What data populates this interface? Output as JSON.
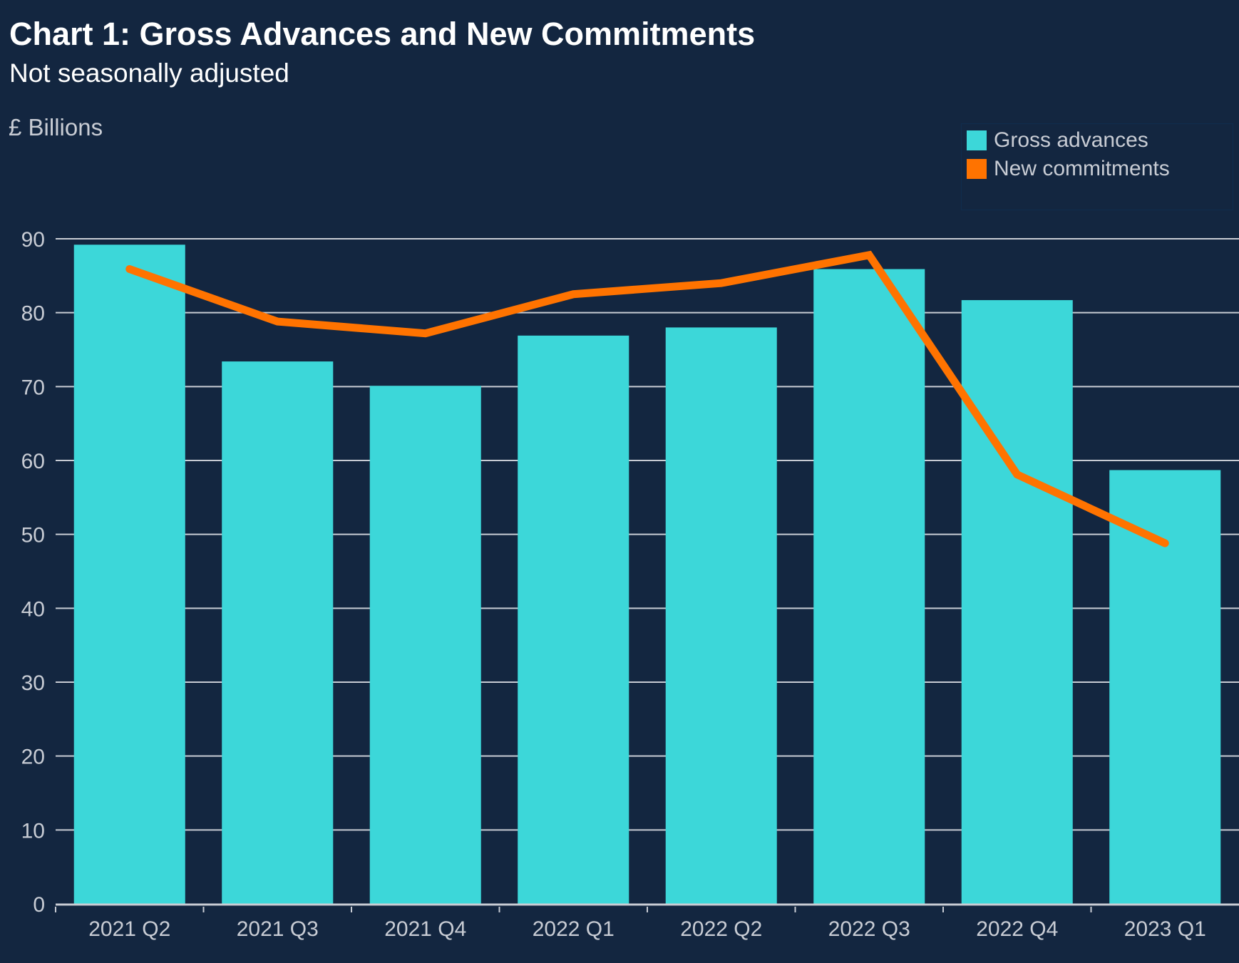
{
  "header": {
    "title": "Chart 1: Gross Advances and New Commitments",
    "subtitle": "Not seasonally adjusted",
    "unit_label": "£ Billions"
  },
  "colors": {
    "background": "#132640",
    "bars": "#3cd7d9",
    "line": "#ff7300",
    "grid": "#c8ccd4",
    "text": "#c8ccd4"
  },
  "legend": {
    "items": [
      {
        "label": "Gross advances",
        "color": "#3cd7d9",
        "marker": "square"
      },
      {
        "label": "New commitments",
        "color": "#ff7300",
        "marker": "square"
      }
    ]
  },
  "chart_data": {
    "type": "bar",
    "title": "Chart 1: Gross Advances and New Commitments",
    "subtitle": "Not seasonally adjusted",
    "xlabel": "",
    "ylabel": "£ Billions",
    "ylim": [
      0,
      90
    ],
    "yticks": [
      0,
      10,
      20,
      30,
      40,
      50,
      60,
      70,
      80,
      90
    ],
    "grid": true,
    "legend_position": "top-right",
    "categories": [
      "2021 Q2",
      "2021 Q3",
      "2021 Q4",
      "2022 Q1",
      "2022 Q2",
      "2022 Q3",
      "2022 Q4",
      "2023 Q1"
    ],
    "series": [
      {
        "name": "Gross advances",
        "type": "bar",
        "color": "#3cd7d9",
        "values": [
          89.2,
          73.4,
          70.1,
          76.9,
          78.0,
          85.9,
          81.7,
          58.7
        ]
      },
      {
        "name": "New commitments",
        "type": "line",
        "color": "#ff7300",
        "values": [
          85.9,
          78.8,
          77.2,
          82.5,
          84.0,
          87.8,
          58.1,
          48.8
        ]
      }
    ]
  }
}
